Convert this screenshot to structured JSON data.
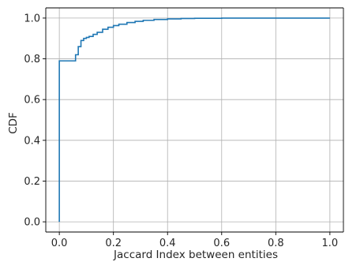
{
  "chart_data": {
    "type": "line",
    "title": "",
    "xlabel": "Jaccard Index between entities",
    "ylabel": "CDF",
    "xlim": [
      -0.05,
      1.05
    ],
    "ylim": [
      -0.05,
      1.05
    ],
    "xticks": [
      0.0,
      0.2,
      0.4,
      0.6,
      0.8,
      1.0
    ],
    "xtick_labels": [
      "0.0",
      "0.2",
      "0.4",
      "0.6",
      "0.8",
      "1.0"
    ],
    "yticks": [
      0.0,
      0.2,
      0.4,
      0.6,
      0.8,
      1.0
    ],
    "ytick_labels": [
      "0.0",
      "0.2",
      "0.4",
      "0.6",
      "0.8",
      "1.0"
    ],
    "grid": true,
    "line_color": "#1f77b4",
    "series": [
      {
        "step": true,
        "x": [
          0.0,
          0.0,
          0.053,
          0.06,
          0.07,
          0.08,
          0.09,
          0.1,
          0.11,
          0.125,
          0.14,
          0.16,
          0.18,
          0.2,
          0.22,
          0.25,
          0.28,
          0.31,
          0.35,
          0.4,
          0.45,
          0.5,
          0.6,
          1.0
        ],
        "y": [
          0.0,
          0.79,
          0.79,
          0.82,
          0.86,
          0.89,
          0.9,
          0.905,
          0.91,
          0.92,
          0.93,
          0.945,
          0.955,
          0.963,
          0.97,
          0.978,
          0.984,
          0.989,
          0.993,
          0.996,
          0.998,
          0.999,
          1.0,
          1.0
        ]
      }
    ]
  }
}
